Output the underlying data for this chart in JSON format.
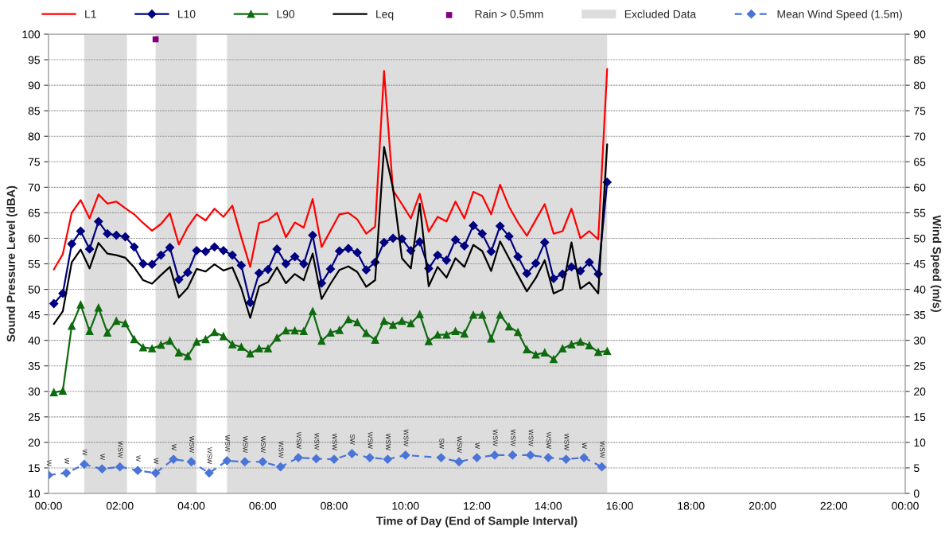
{
  "chart_data": {
    "type": "line",
    "xlabel": "Time of Day (End of Sample Interval)",
    "ylabel": "Sound Pressure Level (dBA)",
    "y2label": "Wind Speed (m/s)",
    "xlim": [
      0,
      24
    ],
    "xticks": [
      {
        "value": 0,
        "label": "00:00"
      },
      {
        "value": 2,
        "label": "02:00"
      },
      {
        "value": 4,
        "label": "04:00"
      },
      {
        "value": 6,
        "label": "06:00"
      },
      {
        "value": 8,
        "label": "08:00"
      },
      {
        "value": 10,
        "label": "10:00"
      },
      {
        "value": 12,
        "label": "12:00"
      },
      {
        "value": 14,
        "label": "14:00"
      },
      {
        "value": 16,
        "label": "16:00"
      },
      {
        "value": 18,
        "label": "18:00"
      },
      {
        "value": 20,
        "label": "20:00"
      },
      {
        "value": 22,
        "label": "22:00"
      },
      {
        "value": 24,
        "label": "00:00"
      }
    ],
    "ylim": [
      10,
      100
    ],
    "yticks": [
      10,
      15,
      20,
      25,
      30,
      35,
      40,
      45,
      50,
      55,
      60,
      65,
      70,
      75,
      80,
      85,
      90,
      95,
      100
    ],
    "y2lim": [
      0,
      90
    ],
    "y2ticks": [
      0,
      5,
      10,
      15,
      20,
      25,
      30,
      35,
      40,
      45,
      50,
      55,
      60,
      65,
      70,
      75,
      80,
      85,
      90
    ],
    "grid": "y",
    "legend": "top",
    "x": [
      0.15,
      0.4,
      0.65,
      0.9,
      1.15,
      1.4,
      1.65,
      1.9,
      2.15,
      2.4,
      2.65,
      2.9,
      3.15,
      3.4,
      3.65,
      3.9,
      4.15,
      4.4,
      4.65,
      4.9,
      5.15,
      5.4,
      5.65,
      5.9,
      6.15,
      6.4,
      6.65,
      6.9,
      7.15,
      7.4,
      7.65,
      7.9,
      8.15,
      8.4,
      8.65,
      8.9,
      9.15,
      9.4,
      9.65,
      9.9,
      10.15,
      10.4,
      10.65,
      10.9,
      11.15,
      11.4,
      11.65,
      11.9,
      12.15,
      12.4,
      12.65,
      12.9,
      13.15,
      13.4,
      13.65,
      13.9,
      14.15,
      14.4,
      14.65,
      14.9,
      15.15,
      15.4,
      15.65
    ],
    "bands": [
      {
        "axis": "x",
        "from": 1.0,
        "to": 2.2,
        "label": "Excluded Data",
        "color": "#dddddd"
      },
      {
        "axis": "x",
        "from": 3.0,
        "to": 4.15,
        "color": "#dddddd"
      },
      {
        "axis": "x",
        "from": 5.0,
        "to": 15.65,
        "color": "#dddddd"
      }
    ],
    "series": [
      {
        "name": "L1",
        "color": "#ff0000",
        "marker": "none",
        "line_style": "solid",
        "values": [
          53.9,
          56.9,
          65.0,
          67.5,
          63.9,
          68.6,
          66.8,
          67.2,
          65.9,
          64.7,
          63.0,
          61.5,
          62.8,
          64.9,
          58.8,
          62.2,
          64.7,
          63.5,
          65.8,
          64.2,
          66.4,
          60.2,
          54.4,
          63.0,
          63.5,
          65.0,
          60.2,
          63.1,
          62.1,
          67.7,
          58.3,
          61.5,
          64.7,
          65.0,
          63.7,
          60.9,
          62.3,
          92.8,
          69.4,
          66.7,
          63.9,
          68.7,
          61.3,
          64.2,
          63.3,
          67.2,
          63.9,
          69.1,
          68.3,
          64.7,
          70.5,
          66.2,
          63.1,
          60.5,
          63.6,
          66.7,
          60.9,
          61.4,
          65.8,
          60.0,
          61.4,
          59.8,
          93.2
        ]
      },
      {
        "name": "L10",
        "color": "#000080",
        "marker": "diamond",
        "line_style": "solid",
        "values": [
          47.2,
          49.2,
          58.9,
          61.4,
          57.9,
          63.3,
          60.9,
          60.6,
          60.3,
          58.3,
          55.0,
          54.9,
          56.7,
          58.2,
          51.9,
          53.3,
          57.6,
          57.4,
          58.3,
          57.6,
          56.7,
          54.7,
          47.4,
          53.2,
          53.9,
          57.9,
          55.0,
          56.4,
          55.0,
          60.6,
          51.2,
          54.0,
          57.5,
          58.0,
          57.2,
          53.8,
          55.3,
          59.2,
          60.0,
          59.9,
          57.6,
          59.3,
          54.1,
          56.7,
          55.7,
          59.7,
          58.5,
          62.5,
          60.9,
          57.4,
          62.4,
          60.4,
          56.4,
          53.1,
          55.1,
          59.2,
          52.1,
          53.0,
          54.4,
          53.6,
          55.3,
          53.0,
          71.0
        ]
      },
      {
        "name": "L90",
        "color": "#0f6b0f",
        "marker": "triangle",
        "line_style": "solid",
        "values": [
          29.8,
          30.1,
          42.8,
          47.0,
          41.8,
          46.4,
          41.5,
          43.8,
          43.3,
          40.2,
          38.6,
          38.4,
          39.1,
          39.9,
          37.6,
          36.9,
          39.7,
          40.2,
          41.6,
          40.8,
          39.2,
          38.7,
          37.4,
          38.4,
          38.4,
          40.5,
          41.9,
          41.9,
          41.8,
          45.7,
          39.9,
          41.5,
          42.0,
          44.1,
          43.5,
          41.4,
          40.1,
          43.8,
          43.0,
          43.8,
          43.3,
          45.1,
          39.8,
          41.1,
          41.1,
          41.8,
          41.3,
          45.0,
          45.0,
          40.3,
          45.0,
          42.7,
          41.6,
          38.2,
          37.2,
          37.6,
          36.3,
          38.4,
          39.2,
          39.7,
          39.0,
          37.7,
          37.9
        ]
      },
      {
        "name": "Leq",
        "color": "#000000",
        "marker": "none",
        "line_style": "solid",
        "values": [
          43.2,
          45.7,
          55.3,
          57.8,
          54.1,
          59.1,
          57.0,
          56.7,
          56.2,
          54.3,
          51.8,
          51.1,
          52.8,
          54.4,
          48.4,
          50.3,
          54.0,
          53.5,
          54.9,
          53.7,
          54.3,
          50.2,
          44.4,
          50.6,
          51.4,
          54.3,
          51.2,
          53.0,
          51.8,
          57.0,
          48.1,
          51.1,
          53.8,
          54.5,
          53.4,
          50.5,
          51.8,
          77.9,
          69.8,
          56.1,
          54.1,
          66.8,
          50.6,
          54.4,
          52.3,
          56.1,
          54.4,
          58.7,
          57.5,
          53.6,
          59.4,
          56.1,
          52.8,
          49.6,
          52.2,
          55.7,
          49.2,
          50.0,
          59.2,
          50.1,
          51.4,
          49.2,
          78.4
        ]
      },
      {
        "name": "Rain > 0.5mm",
        "type": "scatter",
        "color": "#800080",
        "marker": "square",
        "x": [
          3.0
        ],
        "values": [
          99
        ]
      },
      {
        "name": "Mean Wind Speed (1.5m)",
        "axis": "y2",
        "color": "#4a74d8",
        "marker": "diamond",
        "line_style": "dashed",
        "x": [
          0,
          0.5,
          1,
          1.5,
          2,
          2.5,
          3,
          3.5,
          4,
          4.5,
          5,
          5.5,
          6,
          6.5,
          7,
          7.5,
          8,
          8.5,
          9,
          9.5,
          10,
          11,
          11.5,
          12,
          12.5,
          13,
          13.5,
          14,
          14.5,
          15,
          15.5
        ],
        "values": [
          3.6,
          4.0,
          5.7,
          4.8,
          5.2,
          4.5,
          4.0,
          6.7,
          6.2,
          4.0,
          6.4,
          6.2,
          6.2,
          5.2,
          7.0,
          6.8,
          6.7,
          7.8,
          7.0,
          6.7,
          7.5,
          7.0,
          6.2,
          7.0,
          7.5,
          7.5,
          7.5,
          7.0,
          6.7,
          7.0,
          5.2
        ],
        "value_labels": [
          "W",
          "W",
          "W",
          "W",
          "WSW",
          "W",
          "W",
          "W",
          "WSW",
          "WSW",
          "WSW",
          "WSW",
          "WSW",
          "WSW",
          "WSW",
          "WSW",
          "WSW",
          "SW",
          "WSW",
          "WSW",
          "WSW",
          "SW",
          "WSW",
          "W",
          "WSW",
          "WSW",
          "WSW",
          "WSW",
          "WSW",
          "W",
          "WSW"
        ]
      }
    ]
  }
}
